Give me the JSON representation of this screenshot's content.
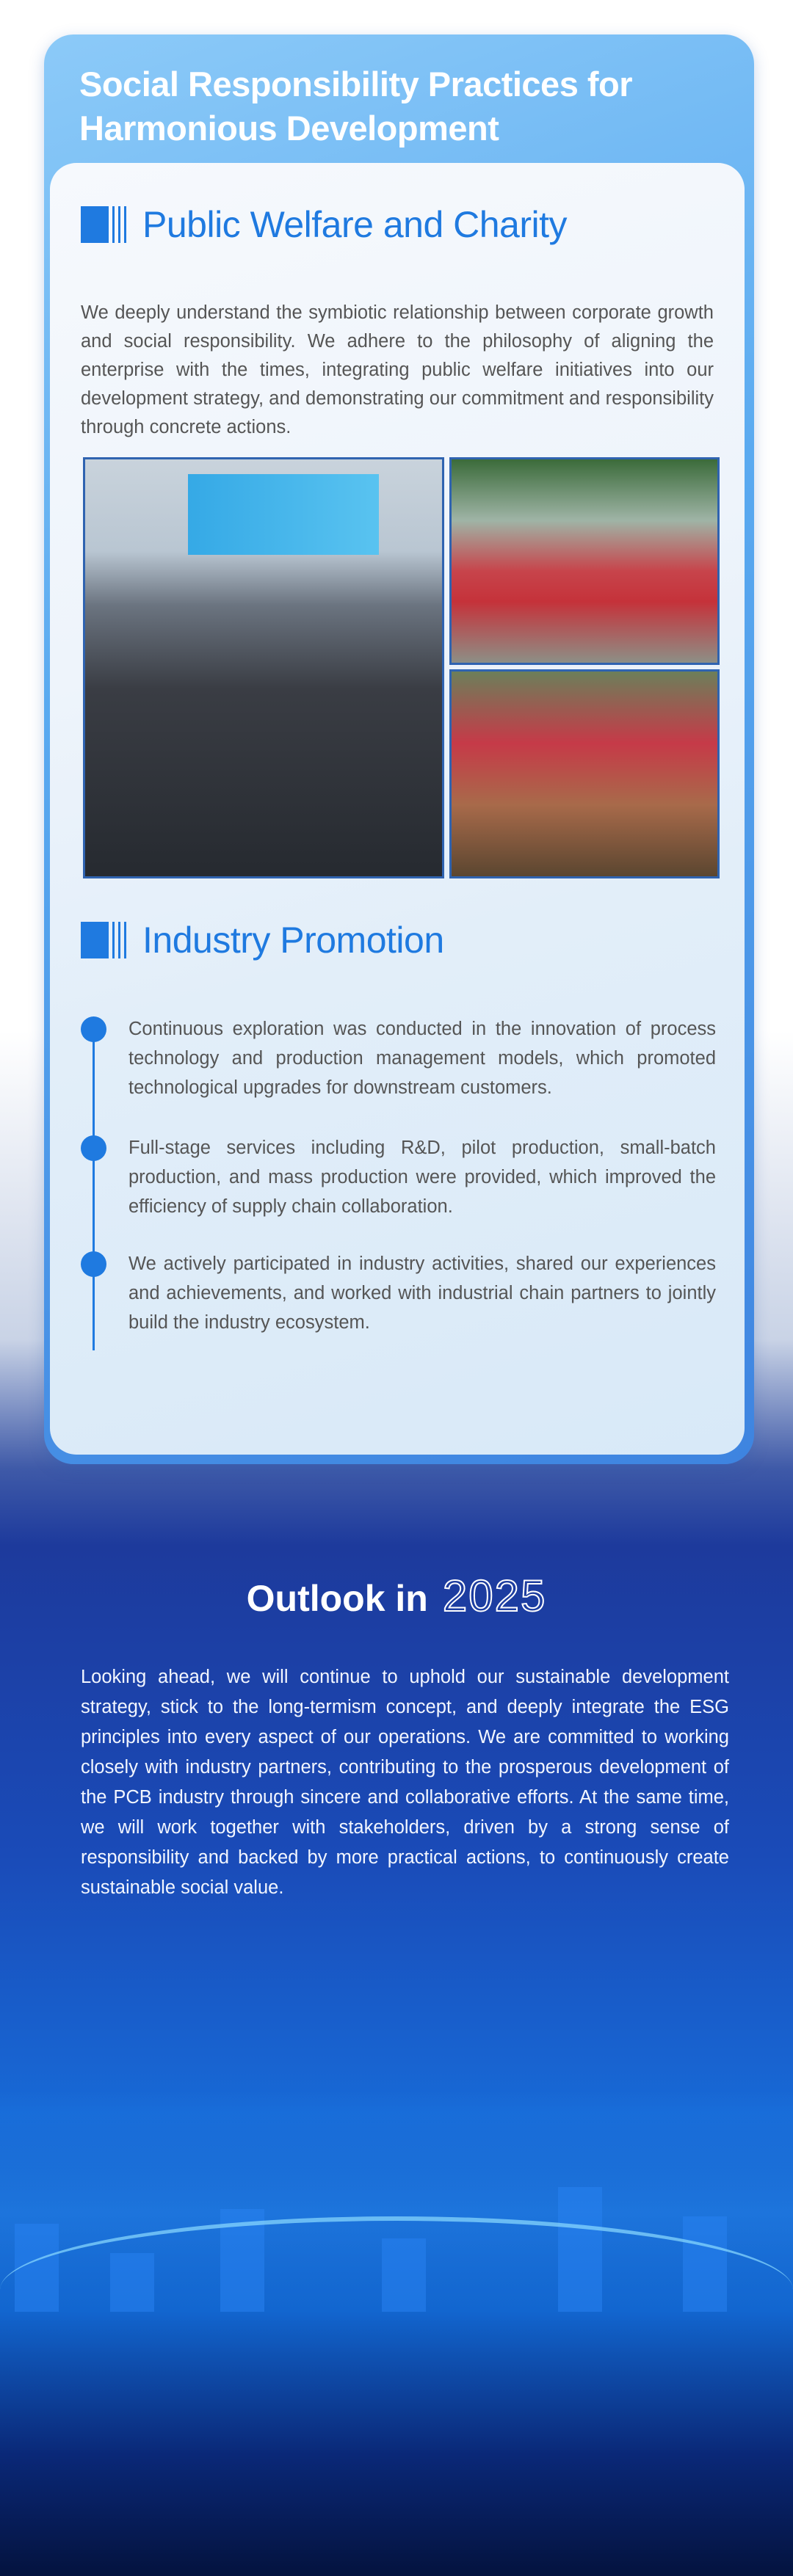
{
  "header": {
    "title_line1": "Social Responsibility Practices for",
    "title_line2": "Harmonious Development"
  },
  "public_welfare": {
    "title": "Public Welfare and Charity",
    "text": "We deeply understand the symbiotic relationship between corporate growth and social responsibility. We adhere to the philosophy of aligning the enterprise with the times, integrating public welfare initiatives into our development strategy, and demonstrating our commitment and responsibility through concrete actions."
  },
  "industry_promotion": {
    "title": "Industry Promotion",
    "items": [
      "Continuous exploration was conducted in the innovation of process technology and production management models, which promoted technological upgrades for downstream customers.",
      "Full-stage services including R&D, pilot production, small-batch production, and mass production were provided, which improved the efficiency of supply chain collaboration.",
      "We actively participated in industry activities, shared our experiences and achievements, and worked with industrial chain partners to jointly build the industry ecosystem."
    ]
  },
  "outlook": {
    "title": "Outlook in",
    "year": "2025",
    "text": "Looking ahead, we will continue to uphold our sustainable development strategy, stick to the long-termism concept, and deeply integrate the ESG principles into every aspect of our operations. We are committed to working closely with industry partners, contributing to the prosperous development of the PCB industry through sincere and collaborative efforts. At the same time, we will work together with stakeholders, driven by a strong sense of responsibility and backed by more practical actions, to continuously create sustainable social value."
  },
  "colors": {
    "accent": "#1f7ae0",
    "body_text": "#555555",
    "dark_bg": "#1d3a9c"
  }
}
